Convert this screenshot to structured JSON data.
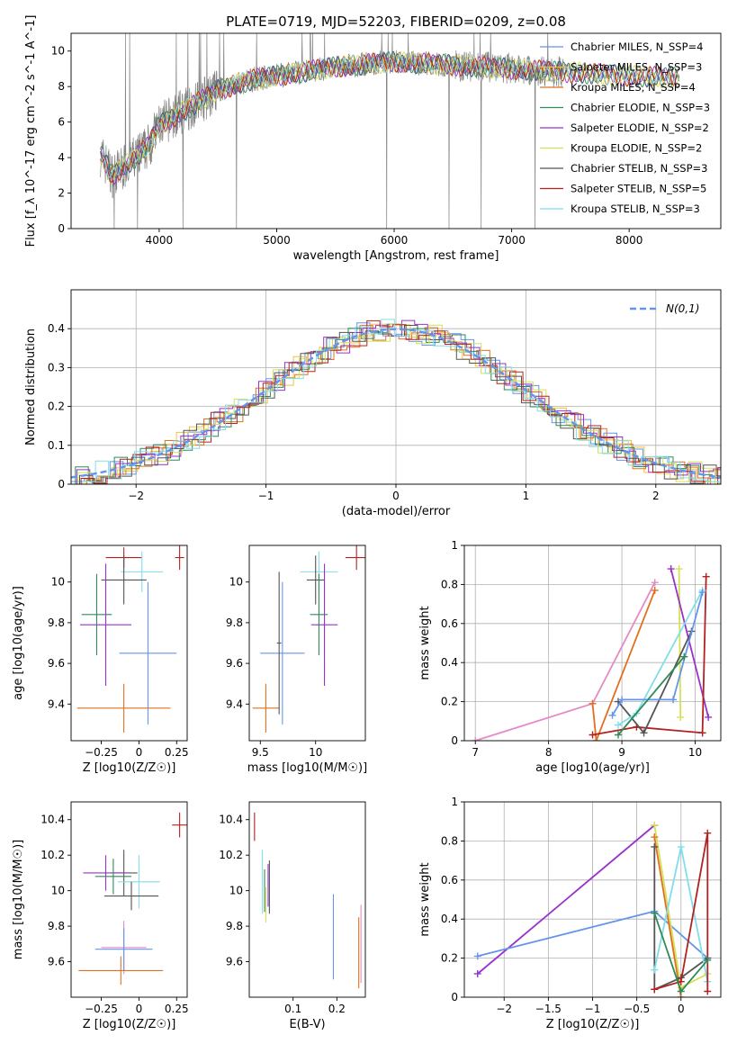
{
  "figure_title": "PLATE=0719, MJD=52203, FIBERID=0209, z=0.08",
  "colors": {
    "chabrier_miles": "#6495ed",
    "salpeter_miles": "#f0c040",
    "kroupa_miles": "#e07020",
    "chabrier_elodie": "#2e8b57",
    "salpeter_elodie": "#9932cc",
    "kroupa_elodie": "#d4e157",
    "chabrier_stelib": "#555555",
    "salpeter_stelib": "#b22222",
    "kroupa_stelib": "#80deea",
    "mean_model": "#808080",
    "pink": "#e58ac4",
    "normal_curve": "#6495ed"
  },
  "chart_data": [
    {
      "id": "spectrum",
      "type": "line",
      "title": "PLATE=0719, MJD=52203, FIBERID=0209, z=0.08",
      "xlabel": "wavelength [Angstrom, rest frame]",
      "ylabel": "Flux [f_λ 10^-17 erg cm^-2 s^-1 A^-1]",
      "xlim": [
        3250,
        8780
      ],
      "ylim": [
        0,
        11
      ],
      "xticks": [
        4000,
        5000,
        6000,
        7000,
        8000
      ],
      "yticks": [
        0,
        2,
        4,
        6,
        8,
        10
      ],
      "legend_position": "top-right",
      "continuum_x": [
        3500,
        3600,
        3700,
        3800,
        3900,
        4000,
        4200,
        4500,
        4800,
        5000,
        5500,
        6000,
        6500,
        7000,
        7500,
        8000,
        8400
      ],
      "continuum_y": [
        4.2,
        3.0,
        3.5,
        4.0,
        4.6,
        5.8,
        6.6,
        7.8,
        8.4,
        8.6,
        9.1,
        9.4,
        9.2,
        9.0,
        8.8,
        8.6,
        8.5
      ],
      "series": [
        {
          "name": "Chabrier MILES, N_SSP=4",
          "color": "#6495ed"
        },
        {
          "name": "Salpeter MILES, N_SSP=3",
          "color": "#f0c040"
        },
        {
          "name": "Kroupa MILES, N_SSP=4",
          "color": "#e07020"
        },
        {
          "name": "Chabrier ELODIE, N_SSP=3",
          "color": "#2e8b57"
        },
        {
          "name": "Salpeter ELODIE, N_SSP=2",
          "color": "#9932cc"
        },
        {
          "name": "Kroupa ELODIE, N_SSP=2",
          "color": "#d4e157"
        },
        {
          "name": "Chabrier STELIB, N_SSP=3",
          "color": "#555555"
        },
        {
          "name": "Salpeter STELIB, N_SSP=5",
          "color": "#b22222"
        },
        {
          "name": "Kroupa STELIB, N_SSP=3",
          "color": "#80deea"
        }
      ]
    },
    {
      "id": "residuals",
      "type": "line",
      "xlabel": "(data-model)/error",
      "ylabel": "Normed distribution",
      "xlim": [
        -2.5,
        2.5
      ],
      "ylim": [
        0,
        0.5
      ],
      "xticks": [
        -2,
        -1,
        0,
        1,
        2
      ],
      "yticks": [
        0.0,
        0.1,
        0.2,
        0.3,
        0.4
      ],
      "grid": true,
      "legend_position": "top-right",
      "legend_label": "N(0,1)",
      "series": [
        {
          "name": "Chabrier MILES",
          "color": "#6495ed",
          "offset": 0
        },
        {
          "name": "Salpeter MILES",
          "color": "#f0c040",
          "offset": 1
        },
        {
          "name": "Kroupa MILES",
          "color": "#e07020",
          "offset": 2
        },
        {
          "name": "Chabrier ELODIE",
          "color": "#2e8b57",
          "offset": 3
        },
        {
          "name": "Salpeter ELODIE",
          "color": "#9932cc",
          "offset": 4
        },
        {
          "name": "Kroupa ELODIE",
          "color": "#d4e157",
          "offset": 5
        },
        {
          "name": "Chabrier STELIB",
          "color": "#555555",
          "offset": 6
        },
        {
          "name": "Salpeter STELIB",
          "color": "#b22222",
          "offset": 7
        },
        {
          "name": "Kroupa STELIB",
          "color": "#80deea",
          "offset": 8
        }
      ]
    },
    {
      "id": "age_vs_Z",
      "type": "scatter",
      "xlabel": "Z [log10(Z/Z☉)]",
      "ylabel": "age [log10(age/yr)]",
      "xlim": [
        -0.45,
        0.32
      ],
      "ylim": [
        9.22,
        10.18
      ],
      "xticks": [
        -0.25,
        0.0,
        0.25
      ],
      "yticks": [
        9.4,
        9.6,
        9.8,
        10.0
      ],
      "points": [
        {
          "x": -0.1,
          "y": 10.12,
          "xerr": 0.12,
          "yerr": 0.05,
          "color": "#b22222"
        },
        {
          "x": 0.27,
          "y": 10.12,
          "xerr": 0.03,
          "yerr": 0.06,
          "color": "#b22222"
        },
        {
          "x": 0.02,
          "y": 10.05,
          "xerr": 0.14,
          "yerr": 0.1,
          "color": "#80deea"
        },
        {
          "x": -0.1,
          "y": 10.01,
          "xerr": 0.15,
          "yerr": 0.12,
          "color": "#555555"
        },
        {
          "x": -0.28,
          "y": 9.84,
          "xerr": 0.1,
          "yerr": 0.2,
          "color": "#2e8b57"
        },
        {
          "x": -0.22,
          "y": 9.79,
          "xerr": 0.17,
          "yerr": 0.3,
          "color": "#9932cc"
        },
        {
          "x": 0.06,
          "y": 9.65,
          "xerr": 0.19,
          "yerr": 0.35,
          "color": "#6495ed"
        },
        {
          "x": -0.1,
          "y": 9.38,
          "xerr": 0.31,
          "yerr": 0.12,
          "color": "#e07020"
        }
      ]
    },
    {
      "id": "age_vs_mass",
      "type": "scatter",
      "xlabel": "mass [log10(M/M☉)]",
      "ylabel": "",
      "xlim": [
        9.4,
        10.45
      ],
      "ylim": [
        9.22,
        10.18
      ],
      "xticks": [
        9.5,
        10.0
      ],
      "yticks": [
        9.4,
        9.6,
        9.8,
        10.0
      ],
      "points": [
        {
          "x": 10.37,
          "y": 10.12,
          "xerr": 0.1,
          "yerr": 0.06,
          "color": "#b22222"
        },
        {
          "x": 10.03,
          "y": 10.05,
          "xerr": 0.17,
          "yerr": 0.1,
          "color": "#80deea"
        },
        {
          "x": 10.0,
          "y": 10.01,
          "xerr": 0.08,
          "yerr": 0.12,
          "color": "#555555"
        },
        {
          "x": 10.03,
          "y": 9.84,
          "xerr": 0.08,
          "yerr": 0.2,
          "color": "#2e8b57"
        },
        {
          "x": 10.08,
          "y": 9.79,
          "xerr": 0.12,
          "yerr": 0.3,
          "color": "#9932cc"
        },
        {
          "x": 9.7,
          "y": 9.65,
          "xerr": 0.2,
          "yerr": 0.35,
          "color": "#6495ed"
        },
        {
          "x": 9.55,
          "y": 9.38,
          "xerr": 0.12,
          "yerr": 0.12,
          "color": "#e07020"
        },
        {
          "x": 9.67,
          "y": 9.7,
          "xerr": 0.02,
          "yerr": 0.35,
          "color": "#555555"
        }
      ]
    },
    {
      "id": "massweight_vs_age",
      "type": "line",
      "xlabel": "age [log10(age/yr)]",
      "ylabel": "mass weight",
      "xlim": [
        6.85,
        10.35
      ],
      "ylim": [
        0,
        1
      ],
      "xticks": [
        7,
        8,
        9,
        10
      ],
      "yticks": [
        0.0,
        0.2,
        0.4,
        0.6,
        0.8,
        1.0
      ],
      "grid": true,
      "series": [
        {
          "color": "#e58ac4",
          "x": [
            7.0,
            8.6,
            9.45
          ],
          "y": [
            0.0,
            0.19,
            0.81
          ]
        },
        {
          "color": "#e07020",
          "x": [
            8.6,
            8.65,
            9.45
          ],
          "y": [
            0.19,
            0.0,
            0.77
          ]
        },
        {
          "color": "#d4e157",
          "x": [
            9.78,
            9.8
          ],
          "y": [
            0.88,
            0.12
          ]
        },
        {
          "color": "#9932cc",
          "x": [
            9.67,
            10.18
          ],
          "y": [
            0.88,
            0.12
          ]
        },
        {
          "color": "#b22222",
          "x": [
            8.6,
            9.2,
            10.1,
            10.15
          ],
          "y": [
            0.03,
            0.07,
            0.04,
            0.84
          ]
        },
        {
          "color": "#555555",
          "x": [
            8.95,
            9.3,
            9.95
          ],
          "y": [
            0.2,
            0.04,
            0.56
          ]
        },
        {
          "color": "#80deea",
          "x": [
            8.95,
            9.2,
            10.1
          ],
          "y": [
            0.08,
            0.14,
            0.77
          ]
        },
        {
          "color": "#6495ed",
          "x": [
            8.87,
            9.0,
            9.7,
            10.1
          ],
          "y": [
            0.13,
            0.21,
            0.21,
            0.76
          ]
        },
        {
          "color": "#2e8b57",
          "x": [
            8.95,
            9.85
          ],
          "y": [
            0.03,
            0.43
          ]
        }
      ]
    },
    {
      "id": "mass_vs_Z",
      "type": "scatter",
      "xlabel": "Z [log10(Z/Z☉)]",
      "ylabel": "mass [log10(M/M☉)]",
      "xlim": [
        -0.45,
        0.32
      ],
      "ylim": [
        9.4,
        10.5
      ],
      "xticks": [
        -0.25,
        0.0,
        0.25
      ],
      "yticks": [
        9.6,
        9.8,
        10.0,
        10.2,
        10.4
      ],
      "points": [
        {
          "x": 0.27,
          "y": 10.37,
          "xerr": 0.05,
          "yerr": 0.07,
          "color": "#b22222"
        },
        {
          "x": -0.1,
          "y": 10.1,
          "xerr": 0.09,
          "yerr": 0.13,
          "color": "#555555"
        },
        {
          "x": -0.22,
          "y": 10.1,
          "xerr": 0.15,
          "yerr": 0.1,
          "color": "#9932cc"
        },
        {
          "x": -0.17,
          "y": 10.08,
          "xerr": 0.12,
          "yerr": 0.1,
          "color": "#2e8b57"
        },
        {
          "x": 0.0,
          "y": 10.05,
          "xerr": 0.14,
          "yerr": 0.15,
          "color": "#80deea"
        },
        {
          "x": -0.05,
          "y": 9.97,
          "xerr": 0.18,
          "yerr": 0.08,
          "color": "#555555"
        },
        {
          "x": -0.1,
          "y": 9.68,
          "xerr": 0.15,
          "yerr": 0.15,
          "color": "#e58ac4"
        },
        {
          "x": -0.1,
          "y": 9.67,
          "xerr": 0.19,
          "yerr": 0.12,
          "color": "#6495ed"
        },
        {
          "x": -0.12,
          "y": 9.55,
          "xerr": 0.28,
          "yerr": 0.08,
          "color": "#e07020"
        }
      ]
    },
    {
      "id": "mass_vs_ebv",
      "type": "scatter",
      "xlabel": "E(B-V)",
      "ylabel": "",
      "xlim": [
        0.0,
        0.265
      ],
      "ylim": [
        9.4,
        10.5
      ],
      "xticks": [
        0.1,
        0.2
      ],
      "yticks": [
        9.6,
        9.8,
        10.0,
        10.2,
        10.4
      ],
      "points": [
        {
          "x": 0.012,
          "y": 10.36,
          "xerr": 0,
          "yerr": 0.08,
          "color": "#b22222"
        },
        {
          "x": 0.03,
          "y": 10.05,
          "xerr": 0,
          "yerr": 0.18,
          "color": "#80deea"
        },
        {
          "x": 0.035,
          "y": 10.0,
          "xerr": 0,
          "yerr": 0.12,
          "color": "#2e8b57"
        },
        {
          "x": 0.038,
          "y": 9.92,
          "xerr": 0,
          "yerr": 0.1,
          "color": "#d4e157"
        },
        {
          "x": 0.043,
          "y": 10.03,
          "xerr": 0,
          "yerr": 0.12,
          "color": "#9932cc"
        },
        {
          "x": 0.046,
          "y": 10.02,
          "xerr": 0,
          "yerr": 0.15,
          "color": "#555555"
        },
        {
          "x": 0.192,
          "y": 9.74,
          "xerr": 0,
          "yerr": 0.24,
          "color": "#6495ed"
        },
        {
          "x": 0.25,
          "y": 9.65,
          "xerr": 0,
          "yerr": 0.2,
          "color": "#e07020"
        },
        {
          "x": 0.255,
          "y": 9.7,
          "xerr": 0,
          "yerr": 0.22,
          "color": "#e58ac4"
        }
      ]
    },
    {
      "id": "massweight_vs_Z",
      "type": "line",
      "xlabel": "Z [log10(Z/Z☉)]",
      "ylabel": "mass weight",
      "xlim": [
        -2.45,
        0.45
      ],
      "ylim": [
        0,
        1
      ],
      "xticks": [
        -2.0,
        -1.5,
        -1.0,
        -0.5,
        0.0
      ],
      "yticks": [
        0.0,
        0.2,
        0.4,
        0.6,
        0.8,
        1.0
      ],
      "grid": true,
      "series": [
        {
          "color": "#9932cc",
          "x": [
            -2.3,
            -0.3
          ],
          "y": [
            0.12,
            0.88
          ]
        },
        {
          "color": "#6495ed",
          "x": [
            -2.3,
            -0.3,
            0.3
          ],
          "y": [
            0.21,
            0.44,
            0.2
          ]
        },
        {
          "color": "#d4e157",
          "x": [
            -0.3,
            0.0,
            0.3
          ],
          "y": [
            0.88,
            0.05,
            0.12
          ]
        },
        {
          "color": "#e07020",
          "x": [
            -0.3,
            0.0
          ],
          "y": [
            0.82,
            0.0
          ]
        },
        {
          "color": "#555555",
          "x": [
            -0.3,
            -0.3,
            0.0,
            0.3
          ],
          "y": [
            0.77,
            0.04,
            0.1,
            0.2
          ]
        },
        {
          "color": "#80deea",
          "x": [
            -0.3,
            0.0,
            0.3
          ],
          "y": [
            0.14,
            0.77,
            0.08
          ]
        },
        {
          "color": "#b22222",
          "x": [
            -0.3,
            0.0,
            0.3,
            0.3
          ],
          "y": [
            0.04,
            0.08,
            0.84,
            0.03
          ]
        },
        {
          "color": "#2e8b57",
          "x": [
            -0.3,
            0.0,
            0.3
          ],
          "y": [
            0.43,
            0.03,
            0.19
          ]
        }
      ]
    }
  ]
}
